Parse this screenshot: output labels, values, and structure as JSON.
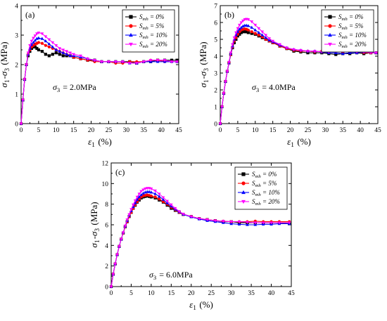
{
  "chart_data": [
    {
      "type": "line",
      "panel_label": "(a)",
      "annotation": "σ3 = 2.0MPa",
      "xlabel": "ε1 (%)",
      "ylabel": "σ1-σ3 (MPa)",
      "xlim": [
        0,
        45
      ],
      "ylim": [
        0,
        4
      ],
      "xticks": [
        0,
        5,
        10,
        15,
        20,
        25,
        30,
        35,
        40,
        45
      ],
      "yticks": [
        0,
        1,
        2,
        3,
        4
      ],
      "legend_position": "top-right",
      "grid": false,
      "series": [
        {
          "name": "Smh = 0%",
          "color": "#000000",
          "marker": "square",
          "x": [
            0,
            0.5,
            1,
            1.5,
            2,
            2.5,
            3,
            3.5,
            4,
            4.5,
            5,
            6,
            7,
            8,
            9,
            10,
            11,
            12,
            13,
            14,
            15,
            17,
            19,
            21,
            23,
            25,
            27,
            29,
            31,
            33,
            35,
            37,
            39,
            41,
            43,
            44.5
          ],
          "y": [
            0,
            0.8,
            1.5,
            2.0,
            2.3,
            2.45,
            2.55,
            2.6,
            2.6,
            2.55,
            2.5,
            2.45,
            2.35,
            2.3,
            2.35,
            2.4,
            2.35,
            2.3,
            2.3,
            2.3,
            2.25,
            2.2,
            2.15,
            2.15,
            2.1,
            2.1,
            2.1,
            2.1,
            2.1,
            2.05,
            2.1,
            2.1,
            2.15,
            2.15,
            2.15,
            2.15
          ]
        },
        {
          "name": "Smh = 5%",
          "color": "#ff0000",
          "marker": "circle",
          "x": [
            0,
            0.5,
            1,
            1.5,
            2,
            2.5,
            3,
            3.5,
            4,
            4.5,
            5,
            6,
            7,
            8,
            9,
            10,
            11,
            12,
            13,
            14,
            15,
            17,
            19,
            21,
            23,
            25,
            27,
            29,
            31,
            33,
            35,
            37,
            39,
            41,
            43,
            44.5
          ],
          "y": [
            0,
            0.8,
            1.5,
            2.0,
            2.35,
            2.5,
            2.6,
            2.65,
            2.7,
            2.72,
            2.75,
            2.72,
            2.65,
            2.6,
            2.55,
            2.5,
            2.45,
            2.4,
            2.35,
            2.3,
            2.25,
            2.2,
            2.15,
            2.1,
            2.1,
            2.1,
            2.05,
            2.05,
            2.1,
            2.1,
            2.1,
            2.15,
            2.15,
            2.1,
            2.1,
            2.1
          ]
        },
        {
          "name": "Smh = 10%",
          "color": "#0000ff",
          "marker": "triangle-up",
          "x": [
            0,
            0.5,
            1,
            1.5,
            2,
            2.5,
            3,
            3.5,
            4,
            4.5,
            5,
            6,
            7,
            8,
            9,
            10,
            11,
            12,
            13,
            14,
            15,
            17,
            19,
            21,
            23,
            25,
            27,
            29,
            31,
            33,
            35,
            37,
            39,
            41,
            43,
            44.5
          ],
          "y": [
            0,
            0.8,
            1.5,
            2.0,
            2.35,
            2.55,
            2.68,
            2.75,
            2.82,
            2.88,
            2.9,
            2.88,
            2.8,
            2.7,
            2.6,
            2.5,
            2.45,
            2.4,
            2.35,
            2.3,
            2.3,
            2.25,
            2.2,
            2.15,
            2.1,
            2.1,
            2.1,
            2.1,
            2.05,
            2.05,
            2.1,
            2.1,
            2.1,
            2.1,
            2.1,
            2.1
          ]
        },
        {
          "name": "Smh = 20%",
          "color": "#ff00ff",
          "marker": "triangle-down",
          "x": [
            0,
            0.5,
            1,
            1.5,
            2,
            2.5,
            3,
            3.5,
            4,
            4.5,
            5,
            6,
            7,
            8,
            9,
            10,
            11,
            12,
            13,
            14,
            15,
            17,
            19,
            21,
            23,
            25,
            27,
            29,
            31,
            33,
            35,
            37,
            39,
            41,
            43,
            44.5
          ],
          "y": [
            0,
            0.8,
            1.5,
            2.0,
            2.4,
            2.65,
            2.8,
            2.9,
            2.98,
            3.05,
            3.08,
            3.05,
            2.95,
            2.85,
            2.75,
            2.65,
            2.55,
            2.5,
            2.45,
            2.4,
            2.35,
            2.3,
            2.2,
            2.15,
            2.1,
            2.1,
            2.1,
            2.1,
            2.05,
            2.05,
            2.1,
            2.15,
            2.15,
            2.15,
            2.1,
            2.1
          ]
        }
      ]
    },
    {
      "type": "line",
      "panel_label": "(b)",
      "annotation": "σ3 = 4.0MPa",
      "xlabel": "ε1 (%)",
      "ylabel": "σ1-σ3 (MPa)",
      "xlim": [
        0,
        45
      ],
      "ylim": [
        0,
        7
      ],
      "xticks": [
        0,
        5,
        10,
        15,
        20,
        25,
        30,
        35,
        40,
        45
      ],
      "yticks": [
        0,
        1,
        2,
        3,
        4,
        5,
        6,
        7
      ],
      "legend_position": "top-right",
      "grid": false,
      "series": [
        {
          "name": "Smh = 0%",
          "color": "#000000",
          "marker": "square",
          "x": [
            0,
            0.5,
            1,
            1.5,
            2,
            2.5,
            3,
            3.5,
            4,
            4.5,
            5,
            5.5,
            6,
            6.5,
            7,
            7.5,
            8,
            9,
            10,
            11,
            12,
            13,
            14,
            15,
            17,
            19,
            21,
            23,
            25,
            27,
            29,
            31,
            33,
            35,
            37,
            39,
            41,
            43,
            44.5
          ],
          "y": [
            0,
            1.0,
            1.8,
            2.5,
            3.1,
            3.6,
            4.1,
            4.5,
            4.8,
            5.0,
            5.2,
            5.3,
            5.4,
            5.45,
            5.45,
            5.45,
            5.4,
            5.35,
            5.3,
            5.2,
            5.1,
            5.0,
            4.9,
            4.8,
            4.6,
            4.45,
            4.3,
            4.25,
            4.2,
            4.2,
            4.2,
            4.15,
            4.1,
            4.15,
            4.15,
            4.2,
            4.15,
            4.2,
            4.2
          ]
        },
        {
          "name": "Smh = 5%",
          "color": "#ff0000",
          "marker": "circle",
          "x": [
            0,
            0.5,
            1,
            1.5,
            2,
            2.5,
            3,
            3.5,
            4,
            4.5,
            5,
            5.5,
            6,
            6.5,
            7,
            7.5,
            8,
            9,
            10,
            11,
            12,
            13,
            14,
            15,
            17,
            19,
            21,
            23,
            25,
            27,
            29,
            31,
            33,
            35,
            37,
            39,
            41,
            43,
            44.5
          ],
          "y": [
            0,
            1.0,
            1.8,
            2.5,
            3.1,
            3.6,
            4.1,
            4.55,
            4.9,
            5.1,
            5.3,
            5.45,
            5.55,
            5.6,
            5.62,
            5.6,
            5.55,
            5.45,
            5.35,
            5.25,
            5.15,
            5.0,
            4.9,
            4.8,
            4.6,
            4.45,
            4.35,
            4.3,
            4.3,
            4.25,
            4.3,
            4.3,
            4.3,
            4.25,
            4.3,
            4.25,
            4.2,
            4.2,
            4.2
          ]
        },
        {
          "name": "Smh = 10%",
          "color": "#0000ff",
          "marker": "triangle-up",
          "x": [
            0,
            0.5,
            1,
            1.5,
            2,
            2.5,
            3,
            3.5,
            4,
            4.5,
            5,
            5.5,
            6,
            6.5,
            7,
            7.5,
            8,
            9,
            10,
            11,
            12,
            13,
            14,
            15,
            17,
            19,
            21,
            23,
            25,
            27,
            29,
            31,
            33,
            35,
            37,
            39,
            41,
            43,
            44.5
          ],
          "y": [
            0,
            1.0,
            1.8,
            2.5,
            3.1,
            3.6,
            4.15,
            4.6,
            5.0,
            5.25,
            5.45,
            5.6,
            5.7,
            5.78,
            5.82,
            5.82,
            5.8,
            5.7,
            5.55,
            5.4,
            5.25,
            5.1,
            4.95,
            4.85,
            4.65,
            4.5,
            4.4,
            4.35,
            4.3,
            4.3,
            4.25,
            4.2,
            4.2,
            4.15,
            4.2,
            4.2,
            4.25,
            4.25,
            4.2
          ]
        },
        {
          "name": "Smh = 20%",
          "color": "#ff00ff",
          "marker": "triangle-down",
          "x": [
            0,
            0.5,
            1,
            1.5,
            2,
            2.5,
            3,
            3.5,
            4,
            4.5,
            5,
            5.5,
            6,
            6.5,
            7,
            7.5,
            8,
            9,
            10,
            11,
            12,
            13,
            14,
            15,
            17,
            19,
            21,
            23,
            25,
            27,
            29,
            31,
            33,
            35,
            37,
            39,
            41,
            43,
            44.5
          ],
          "y": [
            0,
            1.0,
            1.8,
            2.5,
            3.1,
            3.65,
            4.2,
            4.7,
            5.1,
            5.4,
            5.65,
            5.85,
            6.0,
            6.1,
            6.18,
            6.2,
            6.18,
            6.05,
            5.85,
            5.65,
            5.45,
            5.25,
            5.05,
            4.9,
            4.7,
            4.5,
            4.4,
            4.35,
            4.3,
            4.3,
            4.25,
            4.25,
            4.3,
            4.3,
            4.3,
            4.25,
            4.25,
            4.2,
            4.2
          ]
        }
      ]
    },
    {
      "type": "line",
      "panel_label": "(c)",
      "annotation": "σ3 = 6.0MPa",
      "xlabel": "ε1 (%)",
      "ylabel": "σ1-σ3 (MPa)",
      "xlim": [
        0,
        45
      ],
      "ylim": [
        0,
        12
      ],
      "xticks": [
        0,
        5,
        10,
        15,
        20,
        25,
        30,
        35,
        40,
        45
      ],
      "yticks": [
        0,
        2,
        4,
        6,
        8,
        10,
        12
      ],
      "legend_position": "top-right",
      "grid": false,
      "series": [
        {
          "name": "Smh = 0%",
          "color": "#000000",
          "marker": "square",
          "x": [
            0,
            0.5,
            1,
            1.5,
            2,
            2.5,
            3,
            3.5,
            4,
            4.5,
            5,
            5.5,
            6,
            6.5,
            7,
            7.5,
            8,
            8.5,
            9,
            9.5,
            10,
            11,
            12,
            13,
            14,
            15,
            16,
            17,
            18,
            20,
            22,
            24,
            26,
            28,
            30,
            32,
            34,
            36,
            38,
            40,
            42,
            44.5
          ],
          "y": [
            0,
            1.2,
            2.2,
            3.1,
            3.9,
            4.6,
            5.2,
            5.8,
            6.3,
            6.8,
            7.2,
            7.6,
            7.9,
            8.2,
            8.4,
            8.6,
            8.7,
            8.75,
            8.8,
            8.75,
            8.7,
            8.6,
            8.4,
            8.2,
            7.9,
            7.6,
            7.4,
            7.2,
            7.0,
            6.8,
            6.6,
            6.5,
            6.4,
            6.3,
            6.3,
            6.2,
            6.2,
            6.2,
            6.2,
            6.2,
            6.2,
            6.1
          ]
        },
        {
          "name": "Smh = 5%",
          "color": "#ff0000",
          "marker": "circle",
          "x": [
            0,
            0.5,
            1,
            1.5,
            2,
            2.5,
            3,
            3.5,
            4,
            4.5,
            5,
            5.5,
            6,
            6.5,
            7,
            7.5,
            8,
            8.5,
            9,
            9.5,
            10,
            11,
            12,
            13,
            14,
            15,
            16,
            17,
            18,
            20,
            22,
            24,
            26,
            28,
            30,
            32,
            34,
            36,
            38,
            40,
            42,
            44.5
          ],
          "y": [
            0,
            1.2,
            2.2,
            3.1,
            3.9,
            4.6,
            5.2,
            5.8,
            6.3,
            6.8,
            7.2,
            7.6,
            7.95,
            8.25,
            8.5,
            8.7,
            8.8,
            8.85,
            8.9,
            8.85,
            8.8,
            8.7,
            8.5,
            8.25,
            8.0,
            7.7,
            7.45,
            7.2,
            7.0,
            6.8,
            6.6,
            6.5,
            6.4,
            6.35,
            6.3,
            6.3,
            6.3,
            6.35,
            6.3,
            6.3,
            6.3,
            6.3
          ]
        },
        {
          "name": "Smh = 10%",
          "color": "#0000ff",
          "marker": "triangle-up",
          "x": [
            0,
            0.5,
            1,
            1.5,
            2,
            2.5,
            3,
            3.5,
            4,
            4.5,
            5,
            5.5,
            6,
            6.5,
            7,
            7.5,
            8,
            8.5,
            9,
            9.5,
            10,
            11,
            12,
            13,
            14,
            15,
            16,
            17,
            18,
            20,
            22,
            24,
            26,
            28,
            30,
            32,
            34,
            36,
            38,
            40,
            42,
            44.5
          ],
          "y": [
            0,
            1.2,
            2.2,
            3.1,
            3.9,
            4.6,
            5.25,
            5.85,
            6.4,
            6.9,
            7.35,
            7.75,
            8.1,
            8.45,
            8.7,
            8.9,
            9.05,
            9.15,
            9.2,
            9.2,
            9.15,
            9.0,
            8.75,
            8.45,
            8.1,
            7.8,
            7.5,
            7.25,
            7.0,
            6.75,
            6.55,
            6.4,
            6.3,
            6.2,
            6.1,
            6.05,
            6.0,
            6.0,
            6.05,
            6.05,
            6.1,
            6.1
          ]
        },
        {
          "name": "Smh = 20%",
          "color": "#ff00ff",
          "marker": "triangle-down",
          "x": [
            0,
            0.5,
            1,
            1.5,
            2,
            2.5,
            3,
            3.5,
            4,
            4.5,
            5,
            5.5,
            6,
            6.5,
            7,
            7.5,
            8,
            8.5,
            9,
            9.5,
            10,
            11,
            12,
            13,
            14,
            15,
            16,
            17,
            18,
            20,
            22,
            24,
            26,
            28,
            30,
            32,
            34,
            36,
            38,
            40,
            42,
            44.5
          ],
          "y": [
            0,
            1.2,
            2.2,
            3.1,
            3.9,
            4.6,
            5.25,
            5.9,
            6.5,
            7.0,
            7.5,
            7.95,
            8.35,
            8.7,
            9.0,
            9.25,
            9.4,
            9.5,
            9.55,
            9.55,
            9.5,
            9.3,
            9.0,
            8.65,
            8.3,
            7.95,
            7.6,
            7.3,
            7.05,
            6.8,
            6.6,
            6.5,
            6.4,
            6.35,
            6.3,
            6.3,
            6.25,
            6.2,
            6.2,
            6.2,
            6.2,
            6.2
          ]
        }
      ]
    }
  ]
}
